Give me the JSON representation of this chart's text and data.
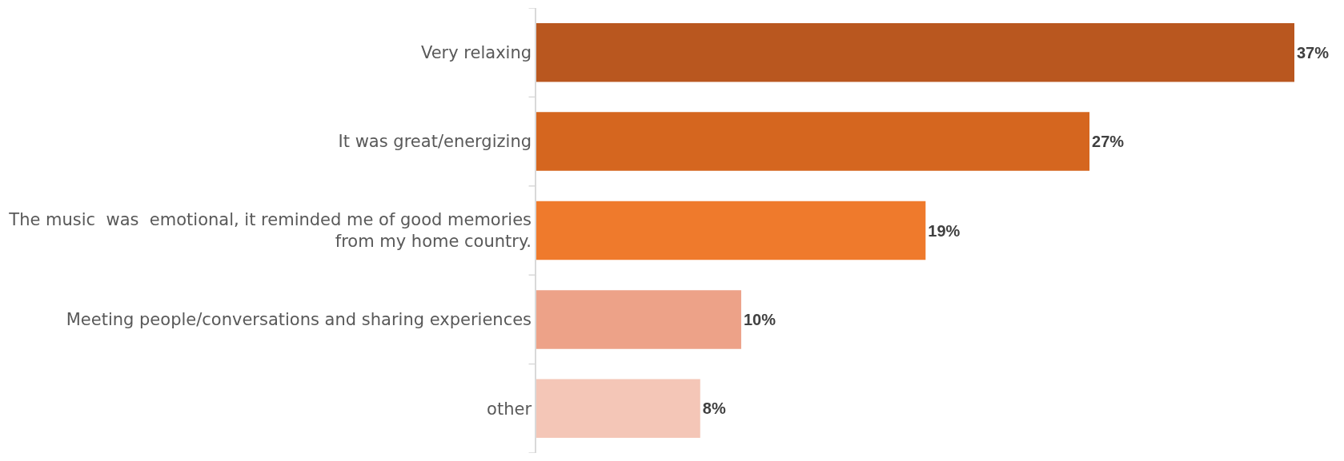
{
  "chart_data": {
    "type": "bar",
    "orientation": "horizontal",
    "categories": [
      "Very relaxing",
      "It was great/energizing",
      "The music  was  emotional, it reminded me of good memories from my home country.",
      "Meeting people/conversations and sharing experiences",
      "other"
    ],
    "values": [
      37,
      27,
      19,
      10,
      8
    ],
    "value_labels": [
      "37%",
      "27%",
      "19%",
      "10%",
      "8%"
    ],
    "colors": [
      "#b9571f",
      "#d5661f",
      "#ef7a2c",
      "#eda288",
      "#f4c6b7"
    ],
    "grid": false
  }
}
